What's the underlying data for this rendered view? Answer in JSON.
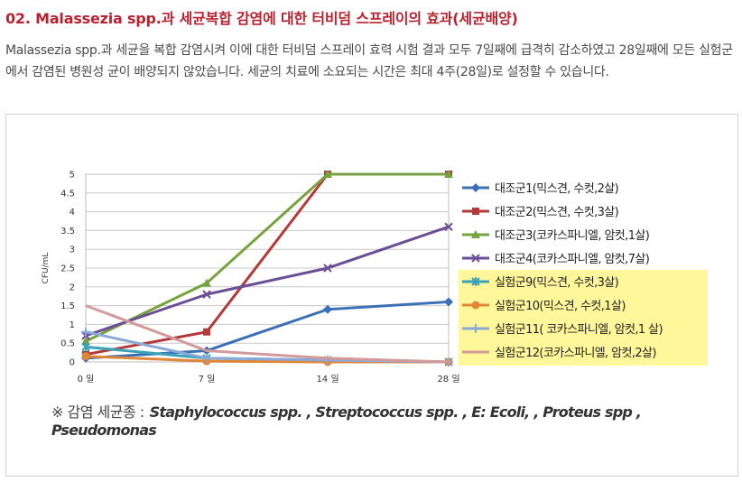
{
  "heading": "02. Malassezia spp.과 세균복합 감염에 대한 터비덤 스프레이의 효과(세균배양)",
  "description": "Malassezia spp.과 세균을 복합 감염시켜 이에 대한 터비덤 스프레이 효력 시험 결과 모두 7일째에 급격히 감소하였고 28일째에 모든 실험군에서 감염된 병원성 균이 배양되지 않았습니다. 세균의 치료에 소요되는 시간은 최대 4주(28일)로 설정할 수 있습니다.",
  "note": {
    "prefix": "※ 감염 세균종 :",
    "species": "Staphylococcus spp. , Streptococcus spp. , E: Ecoli, , Proteus spp , Pseudomonas"
  },
  "chart_data": {
    "type": "line",
    "title": "",
    "xlabel": "",
    "ylabel": "CFU/mL",
    "categories": [
      "0 일",
      "7 일",
      "14 일",
      "28 일"
    ],
    "yticks": [
      "0",
      "0.5",
      "1",
      "1.5",
      "2",
      "2.5",
      "3",
      "3.5",
      "4",
      "4.5",
      "5"
    ],
    "ylim": [
      0,
      5
    ],
    "grid": true,
    "legend_position": "right",
    "highlight_color": "#fff799",
    "series": [
      {
        "name": "대조군1(믹스견, 수컷,2살)",
        "color": "#3b6fb6",
        "marker": "diamond",
        "values": [
          0.1,
          0.3,
          1.4,
          1.6
        ]
      },
      {
        "name": "대조군2(믹스견, 수컷,3살)",
        "color": "#b23a3a",
        "marker": "square",
        "values": [
          0.2,
          0.8,
          5.0,
          5.0
        ]
      },
      {
        "name": "대조군3(코카스파니엘, 암컷,1살)",
        "color": "#77a33f",
        "marker": "triangle",
        "values": [
          0.55,
          2.1,
          5.0,
          5.0
        ]
      },
      {
        "name": "대조군4(코카스파니엘, 암컷,7살)",
        "color": "#6a4f96",
        "marker": "x",
        "values": [
          0.7,
          1.8,
          2.5,
          3.6
        ]
      },
      {
        "name": "실험군9(믹스견, 수컷,3살)",
        "color": "#3aa3b8",
        "marker": "star",
        "values": [
          0.4,
          0.1,
          0.05,
          0.0
        ]
      },
      {
        "name": "실험군10(믹스견, 수컷,1살)",
        "color": "#e0873a",
        "marker": "circle",
        "values": [
          0.15,
          0.02,
          0.0,
          0.0
        ]
      },
      {
        "name": "실험군11( 코카스파니엘, 암컷,1 살)",
        "color": "#8aa8d8",
        "marker": "plus",
        "values": [
          0.8,
          0.1,
          0.05,
          0.0
        ]
      },
      {
        "name": "실험군12(코카스파니엘, 암컷,2살)",
        "color": "#d49a9a",
        "marker": "none",
        "values": [
          1.5,
          0.3,
          0.1,
          0.0
        ]
      }
    ]
  }
}
